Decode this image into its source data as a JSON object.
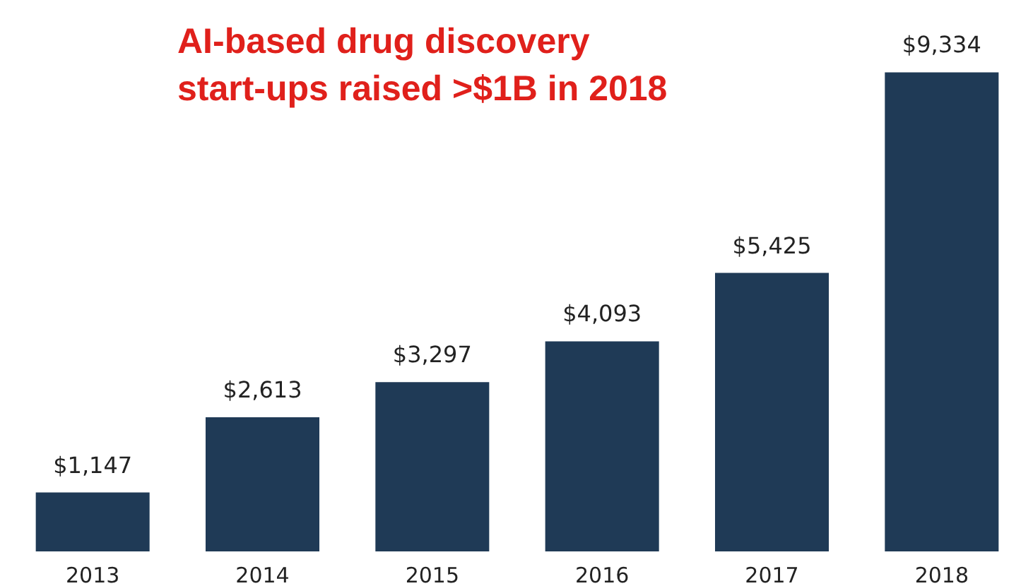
{
  "chart_data": {
    "type": "bar",
    "title": "AI-based drug discovery start-ups raised >$1B in 2018",
    "categories": [
      "2013",
      "2014",
      "2015",
      "2016",
      "2017",
      "2018"
    ],
    "values": [
      1147,
      2613,
      3297,
      4093,
      5425,
      9334
    ],
    "value_labels": [
      "$1,147",
      "$2,613",
      "$3,297",
      "$4,093",
      "$5,425",
      "$9,334"
    ],
    "color": "#1f3a56",
    "grid": false
  }
}
